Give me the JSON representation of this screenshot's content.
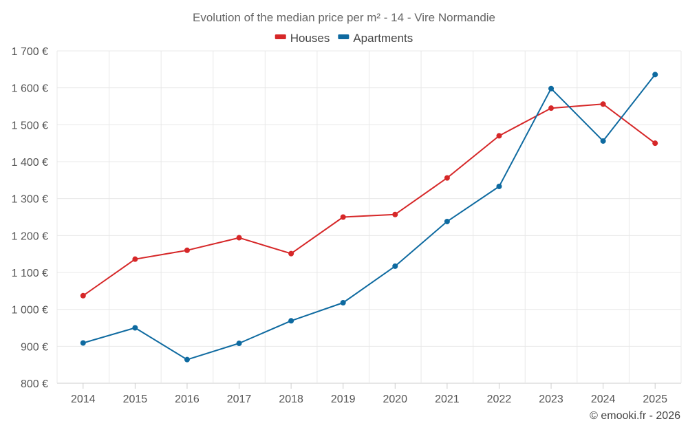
{
  "chart_data": {
    "type": "line",
    "title": "Evolution of the median price per m² - 14 - Vire Normandie",
    "categories": [
      "2014",
      "2015",
      "2016",
      "2017",
      "2018",
      "2019",
      "2020",
      "2021",
      "2022",
      "2023",
      "2024",
      "2025"
    ],
    "series": [
      {
        "name": "Houses",
        "color": "#d62728",
        "values": [
          1037,
          1136,
          1160,
          1194,
          1151,
          1250,
          1257,
          1356,
          1470,
          1545,
          1556,
          1450
        ]
      },
      {
        "name": "Apartments",
        "color": "#0e6aa0",
        "values": [
          909,
          950,
          864,
          908,
          969,
          1018,
          1117,
          1238,
          1333,
          1598,
          1456,
          1636
        ]
      }
    ],
    "ylim": [
      800,
      1700
    ],
    "yticks": [
      800,
      900,
      1000,
      1100,
      1200,
      1300,
      1400,
      1500,
      1600,
      1700
    ],
    "ytick_labels": [
      "800 €",
      "900 €",
      "1 000 €",
      "1 100 €",
      "1 200 €",
      "1 300 €",
      "1 400 €",
      "1 500 €",
      "1 600 €",
      "1 700 €"
    ],
    "xlabel": "",
    "ylabel": "",
    "grid": true,
    "legend_position": "top-center",
    "credit": "© emooki.fr - 2026"
  }
}
